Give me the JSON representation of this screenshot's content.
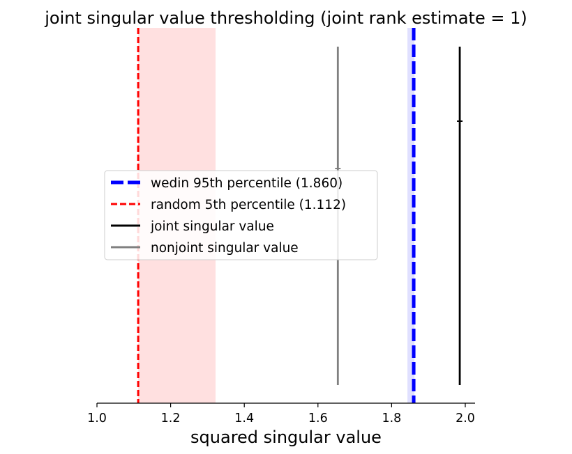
{
  "chart_data": {
    "type": "vertical-line-plot",
    "title": "joint singular value thresholding (joint rank estimate = 1)",
    "xlabel": "squared singular value",
    "ylabel": "",
    "xlim": [
      1.0,
      2.03
    ],
    "xticks": [
      "1.0",
      "1.2",
      "1.4",
      "1.6",
      "1.8",
      "2.0"
    ],
    "xtick_values": [
      1.0,
      1.2,
      1.4,
      1.6,
      1.8,
      2.0
    ],
    "grid": false,
    "legend_position": "center-left",
    "shaded_regions": [
      {
        "name": "random 5th percentile range",
        "x_start": 1.112,
        "x_end": 1.322,
        "color": "#ffe0e0"
      },
      {
        "name": "wedin 95th percentile range",
        "x_start": 1.843,
        "x_end": 1.862,
        "color": "#e0e0ff"
      }
    ],
    "thresholds": [
      {
        "name": "wedin 95th percentile (1.860)",
        "x": 1.86,
        "color": "#0000ff",
        "style": "dashed"
      },
      {
        "name": "random 5th percentile (1.112)",
        "x": 1.112,
        "color": "#ff0000",
        "style": "dashed"
      }
    ],
    "singular_values": [
      {
        "kind": "joint",
        "x": 1.985,
        "color": "#000000"
      },
      {
        "kind": "nonjoint",
        "x": 1.654,
        "color": "#808080"
      }
    ],
    "legend": [
      {
        "label": "wedin 95th percentile (1.860)",
        "color": "#0000ff",
        "style": "dashed-thick"
      },
      {
        "label": "random 5th percentile (1.112)",
        "color": "#ff0000",
        "style": "dashed"
      },
      {
        "label": "joint singular value",
        "color": "#000000",
        "style": "solid"
      },
      {
        "label": "nonjoint singular value",
        "color": "#808080",
        "style": "solid"
      }
    ]
  }
}
